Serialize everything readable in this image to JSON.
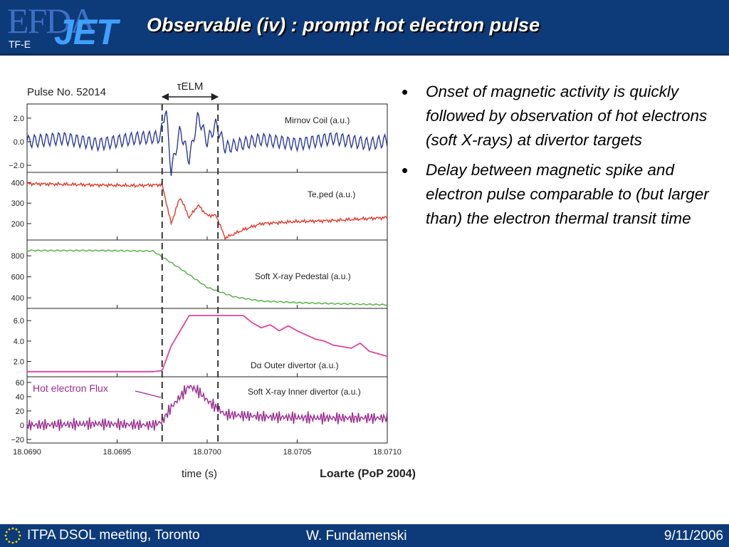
{
  "header": {
    "logo_efda": "EFDA",
    "logo_jet": "JET",
    "logo_tfe": "TF-E",
    "title": "Observable (iv) : prompt hot electron pulse"
  },
  "bullets": [
    "Onset of magnetic activity is quickly followed by observation of hot electrons (soft X-rays) at divertor targets",
    "Delay between magnetic spike and electron pulse comparable to (but larger than) the electron thermal transit time"
  ],
  "footer": {
    "left": "ITPA DSOL meeting, Toronto",
    "center": "W. Fundamenski",
    "right": "9/11/2006"
  },
  "chart_data": {
    "type": "line",
    "title": "Pulse No. 52014",
    "xlabel": "time (s)",
    "source": "Loarte (PoP 2004)",
    "xlim": [
      18.069,
      18.071
    ],
    "x_ticks": [
      "18.0690",
      "18.0695",
      "18.0700",
      "18.0705",
      "18.0710"
    ],
    "interval_label": "τELM",
    "interval": [
      18.06975,
      18.07006
    ],
    "dashed_lines": [
      18.06975,
      18.07006
    ],
    "annotation": "Hot electron Flux",
    "panels": [
      {
        "label": "Mirnov Coil (a.u.)",
        "color": "#2b3a9a",
        "ylim": [
          -2.6,
          3.2
        ],
        "y_ticks": [
          "2.0",
          "0.0",
          "−2.0"
        ],
        "x": [
          18.069,
          18.0692,
          18.0694,
          18.0696,
          18.06974,
          18.06977,
          18.0698,
          18.06985,
          18.0699,
          18.06995,
          18.07,
          18.07005,
          18.0701,
          18.0703,
          18.0705,
          18.0707,
          18.0709,
          18.071
        ],
        "y": [
          0.0,
          0.3,
          -0.2,
          0.3,
          0.4,
          3.0,
          -2.5,
          1.0,
          -1.5,
          2.2,
          0.0,
          1.5,
          -0.5,
          0.2,
          -0.2,
          0.3,
          -0.2,
          0.1
        ]
      },
      {
        "label": "Te,ped (a.u.)",
        "color": "#e03a2f",
        "ylim": [
          120,
          450
        ],
        "y_ticks": [
          "400",
          "300",
          "200"
        ],
        "x": [
          18.069,
          18.0693,
          18.0696,
          18.06975,
          18.0698,
          18.06985,
          18.0699,
          18.06995,
          18.07,
          18.07005,
          18.0701,
          18.0702,
          18.0703,
          18.0705,
          18.0707,
          18.071
        ],
        "y": [
          395,
          390,
          385,
          390,
          200,
          330,
          230,
          290,
          240,
          240,
          130,
          170,
          200,
          210,
          215,
          230
        ]
      },
      {
        "label": "Soft X-ray Pedestal (a.u.)",
        "color": "#4caf3a",
        "ylim": [
          300,
          950
        ],
        "y_ticks": [
          "800",
          "600",
          "400"
        ],
        "x": [
          18.069,
          18.0694,
          18.0697,
          18.06985,
          18.07,
          18.07015,
          18.0703,
          18.0705,
          18.0707,
          18.071
        ],
        "y": [
          850,
          850,
          845,
          680,
          500,
          410,
          370,
          355,
          345,
          335
        ]
      },
      {
        "label": "Dα Outer divertor (a.u.)",
        "color": "#e0449b",
        "ylim": [
          0.5,
          7.2
        ],
        "y_ticks": [
          "6.0",
          "4.0",
          "2.0"
        ],
        "x": [
          18.069,
          18.0697,
          18.06975,
          18.0698,
          18.06985,
          18.0699,
          18.0702,
          18.07025,
          18.0703,
          18.07035,
          18.0704,
          18.07045,
          18.0705,
          18.0706,
          18.07065,
          18.0707,
          18.0708,
          18.07085,
          18.0709,
          18.071
        ],
        "y": [
          1.0,
          1.0,
          1.1,
          3.5,
          5.0,
          6.5,
          6.5,
          5.8,
          5.3,
          5.6,
          5.0,
          5.5,
          5.0,
          4.2,
          4.0,
          3.6,
          3.3,
          3.8,
          3.0,
          2.5
        ]
      },
      {
        "label": "Soft X-ray Inner divertor (a.u.)",
        "color": "#9b2b8f",
        "ylim": [
          -25,
          68
        ],
        "y_ticks": [
          "60",
          "40",
          "20",
          "0",
          "−20"
        ],
        "x": [
          18.069,
          18.0694,
          18.0697,
          18.06975,
          18.0698,
          18.06985,
          18.0699,
          18.06995,
          18.07,
          18.07005,
          18.0701,
          18.0703,
          18.0706,
          18.071
        ],
        "y": [
          0,
          2,
          0,
          5,
          25,
          40,
          55,
          48,
          35,
          25,
          15,
          12,
          10,
          10
        ]
      }
    ]
  }
}
